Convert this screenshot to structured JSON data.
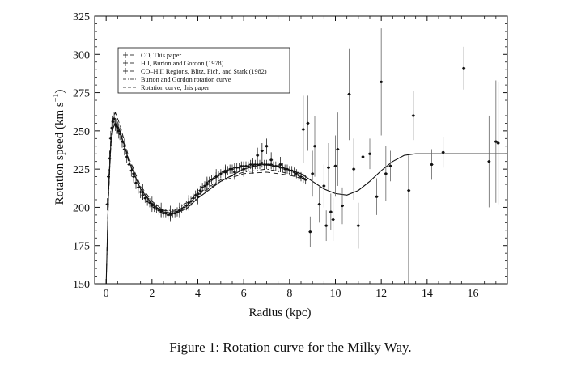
{
  "caption": "Figure 1:  Rotation curve for the Milky Way.",
  "chart_data": {
    "type": "scatter",
    "xlabel": "Radius (kpc)",
    "ylabel": "Rotation speed (km s",
    "ylabel_superscript": "−1",
    "ylabel_close": ")",
    "xlim": [
      -0.5,
      17.5
    ],
    "ylim": [
      150,
      325
    ],
    "xticks": [
      0,
      2,
      4,
      6,
      8,
      10,
      12,
      14,
      16
    ],
    "yticks": [
      150,
      175,
      200,
      225,
      250,
      275,
      300,
      325
    ],
    "grid": false,
    "legend": {
      "placement": "top-left",
      "entries": [
        {
          "label": "CO, This paper",
          "marker": "cross",
          "line": "dashdot"
        },
        {
          "label": "H I, Burton and Gordon (1978)",
          "marker": "cross",
          "line": "none"
        },
        {
          "label": "CO–H II Regions, Blitz, Fich, and Stark (1982)",
          "marker": "cross",
          "line": "none"
        },
        {
          "label": "Burton and Gordon rotation curve",
          "marker": "none",
          "line": "dashdot"
        },
        {
          "label": "Rotation curve, this paper",
          "marker": "none",
          "line": "dashed"
        }
      ]
    },
    "series": [
      {
        "name": "CO, This paper",
        "points": [
          [
            0.05,
            202,
            4
          ],
          [
            0.1,
            220,
            5
          ],
          [
            0.15,
            232,
            5
          ],
          [
            0.2,
            245,
            5
          ],
          [
            0.25,
            252,
            5
          ],
          [
            0.3,
            256,
            4
          ],
          [
            0.35,
            258,
            4
          ],
          [
            0.4,
            254,
            4
          ],
          [
            0.5,
            252,
            4
          ],
          [
            0.6,
            248,
            4
          ],
          [
            0.7,
            243,
            4
          ],
          [
            0.8,
            238,
            4
          ],
          [
            0.9,
            233,
            4
          ],
          [
            1.0,
            228,
            4
          ],
          [
            1.1,
            224,
            4
          ],
          [
            1.2,
            220,
            4
          ],
          [
            1.3,
            216,
            4
          ],
          [
            1.4,
            213,
            4
          ],
          [
            1.5,
            210,
            4
          ],
          [
            1.6,
            208,
            3
          ],
          [
            1.7,
            206,
            3
          ],
          [
            1.8,
            204,
            3
          ],
          [
            1.9,
            203,
            3
          ],
          [
            2.0,
            201,
            3
          ],
          [
            2.1,
            200,
            3
          ],
          [
            2.2,
            199,
            3
          ],
          [
            2.3,
            198,
            3
          ],
          [
            2.4,
            197,
            3
          ],
          [
            2.5,
            196,
            3
          ],
          [
            2.6,
            196,
            3
          ],
          [
            2.7,
            195,
            3
          ],
          [
            2.8,
            195,
            3
          ],
          [
            2.9,
            196,
            3
          ],
          [
            3.0,
            196,
            3
          ],
          [
            3.1,
            197,
            3
          ],
          [
            3.2,
            198,
            3
          ],
          [
            3.3,
            199,
            3
          ],
          [
            3.4,
            200,
            3
          ],
          [
            3.5,
            201,
            3
          ],
          [
            3.6,
            203,
            3
          ],
          [
            3.7,
            204,
            3
          ],
          [
            3.8,
            206,
            3
          ],
          [
            3.9,
            208,
            3
          ],
          [
            4.0,
            209,
            3
          ],
          [
            4.1,
            211,
            3
          ],
          [
            4.2,
            213,
            3
          ],
          [
            4.3,
            214,
            3
          ],
          [
            4.4,
            216,
            3
          ],
          [
            4.5,
            217,
            3
          ],
          [
            4.6,
            218,
            3
          ],
          [
            4.7,
            219,
            3
          ],
          [
            4.8,
            220,
            3
          ],
          [
            4.9,
            221,
            3
          ],
          [
            5.0,
            222,
            3
          ],
          [
            5.1,
            223,
            3
          ],
          [
            5.2,
            224,
            3
          ],
          [
            5.3,
            224,
            3
          ],
          [
            5.4,
            225,
            3
          ],
          [
            5.5,
            225,
            3
          ],
          [
            5.6,
            226,
            3
          ],
          [
            5.7,
            226,
            3
          ],
          [
            5.8,
            226,
            3
          ],
          [
            5.9,
            227,
            3
          ],
          [
            6.0,
            227,
            3
          ],
          [
            6.1,
            227,
            3
          ],
          [
            6.2,
            227,
            3
          ],
          [
            6.3,
            228,
            3
          ],
          [
            6.4,
            228,
            3
          ],
          [
            6.5,
            228,
            3
          ],
          [
            6.6,
            228,
            3
          ],
          [
            6.7,
            228,
            3
          ],
          [
            6.8,
            229,
            3
          ],
          [
            6.9,
            228,
            3
          ],
          [
            7.0,
            228,
            3
          ],
          [
            7.1,
            228,
            3
          ],
          [
            7.2,
            228,
            3
          ],
          [
            7.3,
            227,
            3
          ],
          [
            7.4,
            227,
            3
          ],
          [
            7.5,
            227,
            3
          ],
          [
            7.6,
            226,
            3
          ],
          [
            7.7,
            226,
            3
          ],
          [
            7.8,
            225,
            3
          ],
          [
            7.9,
            225,
            3
          ],
          [
            8.0,
            224,
            3
          ],
          [
            8.1,
            224,
            3
          ],
          [
            8.2,
            223,
            3
          ],
          [
            8.3,
            222,
            3
          ],
          [
            8.4,
            221,
            3
          ],
          [
            8.5,
            220,
            3
          ],
          [
            8.6,
            219,
            3
          ],
          [
            8.7,
            218,
            3
          ]
        ]
      },
      {
        "name": "H I, Burton and Gordon (1978)",
        "points": [
          [
            0.45,
            253,
            5
          ],
          [
            0.55,
            250,
            5
          ],
          [
            0.8,
            240,
            5
          ],
          [
            1.2,
            222,
            5
          ],
          [
            1.6,
            210,
            5
          ],
          [
            2.0,
            202,
            5
          ],
          [
            2.4,
            198,
            5
          ],
          [
            2.8,
            196,
            5
          ],
          [
            3.2,
            198,
            5
          ],
          [
            3.6,
            203,
            5
          ],
          [
            4.0,
            207,
            5
          ],
          [
            4.4,
            215,
            5
          ],
          [
            4.8,
            220,
            5
          ],
          [
            5.2,
            223,
            5
          ],
          [
            5.6,
            223,
            5
          ],
          [
            6.0,
            225,
            5
          ],
          [
            6.4,
            227,
            5
          ],
          [
            6.6,
            234,
            5
          ],
          [
            6.8,
            237,
            5
          ],
          [
            7.0,
            240,
            5
          ],
          [
            7.2,
            231,
            5
          ],
          [
            7.6,
            228,
            5
          ]
        ]
      },
      {
        "name": "CO–H II Regions, Blitz, Fich, and Stark (1982)",
        "points": [
          [
            8.6,
            251,
            22
          ],
          [
            8.8,
            255,
            18
          ],
          [
            8.9,
            184,
            10
          ],
          [
            9.0,
            222,
            15
          ],
          [
            9.1,
            240,
            20
          ],
          [
            9.3,
            202,
            12
          ],
          [
            9.5,
            214,
            14
          ],
          [
            9.6,
            188,
            10
          ],
          [
            9.7,
            226,
            16
          ],
          [
            9.8,
            197,
            12
          ],
          [
            9.9,
            192,
            14
          ],
          [
            10.0,
            227,
            20
          ],
          [
            10.1,
            238,
            24
          ],
          [
            10.3,
            201,
            12
          ],
          [
            10.6,
            274,
            30
          ],
          [
            10.8,
            225,
            20
          ],
          [
            11.0,
            188,
            15
          ],
          [
            11.2,
            233,
            18
          ],
          [
            11.5,
            235,
            10
          ],
          [
            11.8,
            207,
            12
          ],
          [
            12.0,
            282,
            35
          ],
          [
            12.2,
            222,
            18
          ],
          [
            12.4,
            227,
            10
          ],
          [
            13.2,
            211,
            8
          ],
          [
            13.4,
            260,
            16
          ],
          [
            14.2,
            228,
            10
          ],
          [
            14.7,
            236,
            10
          ],
          [
            15.6,
            291,
            14
          ],
          [
            16.7,
            230,
            30
          ],
          [
            17.0,
            243,
            40
          ],
          [
            17.1,
            242,
            40
          ]
        ]
      }
    ],
    "curves": [
      {
        "name": "Burton and Gordon rotation curve",
        "style": "dashdot",
        "points": [
          [
            0,
            150
          ],
          [
            0.1,
            205
          ],
          [
            0.2,
            238
          ],
          [
            0.3,
            252
          ],
          [
            0.45,
            255
          ],
          [
            0.6,
            249
          ],
          [
            1,
            229
          ],
          [
            1.5,
            212
          ],
          [
            2,
            203
          ],
          [
            2.5,
            198
          ],
          [
            3,
            198
          ],
          [
            3.5,
            203
          ],
          [
            4,
            209
          ],
          [
            5,
            218
          ],
          [
            6,
            223
          ],
          [
            7,
            225
          ],
          [
            8,
            222
          ],
          [
            8.5,
            219
          ]
        ]
      },
      {
        "name": "Rotation curve, this paper",
        "style": "dashed",
        "points": [
          [
            0,
            150
          ],
          [
            0.1,
            210
          ],
          [
            0.2,
            245
          ],
          [
            0.3,
            258
          ],
          [
            0.4,
            262
          ],
          [
            0.6,
            254
          ],
          [
            1,
            232
          ],
          [
            1.5,
            214
          ],
          [
            2,
            204
          ],
          [
            2.5,
            198
          ],
          [
            3,
            197
          ],
          [
            3.5,
            201
          ],
          [
            4,
            208
          ],
          [
            5,
            217
          ],
          [
            6,
            222
          ],
          [
            7,
            223
          ],
          [
            8,
            221
          ],
          [
            8.5,
            219
          ]
        ]
      },
      {
        "name": "",
        "style": "solid",
        "points": [
          [
            0,
            150
          ],
          [
            0.1,
            208
          ],
          [
            0.2,
            240
          ],
          [
            0.3,
            252
          ],
          [
            0.4,
            255
          ],
          [
            0.6,
            250
          ],
          [
            1,
            230
          ],
          [
            1.5,
            212
          ],
          [
            2,
            202
          ],
          [
            2.5,
            197
          ],
          [
            3,
            196
          ],
          [
            3.5,
            199
          ],
          [
            4,
            206
          ],
          [
            5,
            217
          ],
          [
            6,
            225
          ],
          [
            6.8,
            228
          ],
          [
            7.5,
            227
          ],
          [
            8.5,
            222
          ],
          [
            9,
            217
          ],
          [
            9.5,
            212
          ],
          [
            10,
            209
          ],
          [
            10.5,
            208
          ],
          [
            11,
            211
          ],
          [
            11.5,
            217
          ],
          [
            12,
            224
          ],
          [
            12.5,
            230
          ],
          [
            13,
            234
          ],
          [
            13.5,
            235
          ],
          [
            17.5,
            235
          ]
        ]
      }
    ],
    "vline": {
      "x": 13.2,
      "from": 150,
      "to": 234
    }
  }
}
